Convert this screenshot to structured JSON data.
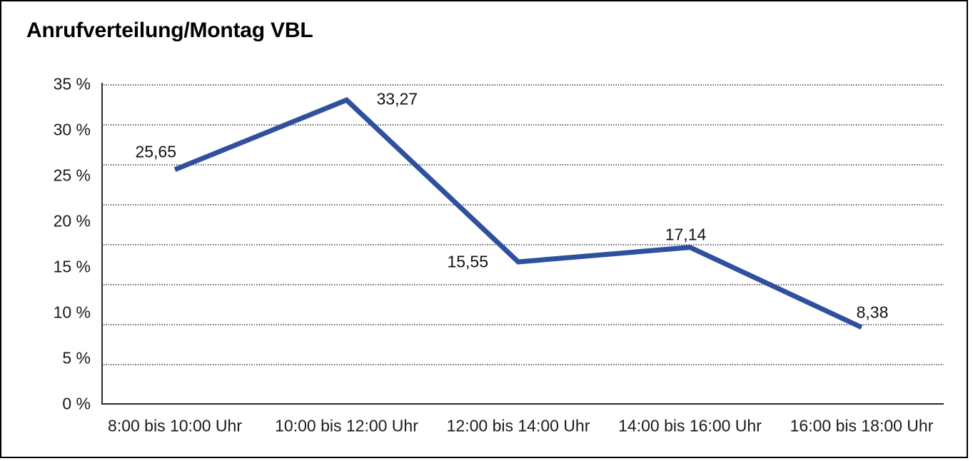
{
  "chart_data": {
    "type": "line",
    "title": "Anrufverteilung/Montag VBL",
    "categories": [
      "8:00 bis 10:00 Uhr",
      "10:00 bis 12:00 Uhr",
      "12:00 bis 14:00 Uhr",
      "14:00 bis 16:00 Uhr",
      "16:00 bis 18:00 Uhr"
    ],
    "values": [
      25.65,
      33.27,
      15.55,
      17.14,
      8.38
    ],
    "value_labels": [
      "25,65",
      "33,27",
      "15,55",
      "17,14",
      "8,38"
    ],
    "ylim": [
      0,
      35
    ],
    "yticks": [
      {
        "value": 35,
        "label": "35 %"
      },
      {
        "value": 30,
        "label": "30 %"
      },
      {
        "value": 25,
        "label": "25 %"
      },
      {
        "value": 20,
        "label": "20 %"
      },
      {
        "value": 15,
        "label": "15 %"
      },
      {
        "value": 10,
        "label": "10 %"
      },
      {
        "value": 5,
        "label": "5 %"
      },
      {
        "value": 0,
        "label": "0 %"
      }
    ],
    "xlabel": "",
    "ylabel": "",
    "grid": "horizontal dotted, 8 even intervals between top line and x-axis",
    "legend": "none",
    "colors": {
      "line": "#2F509E",
      "axis": "#2b2b2b",
      "grid_dots": "#4a4a4a",
      "tick_text": "#1a1a1a",
      "title_text": "#000000",
      "background": "#ffffff",
      "frame_border": "#000000"
    }
  }
}
